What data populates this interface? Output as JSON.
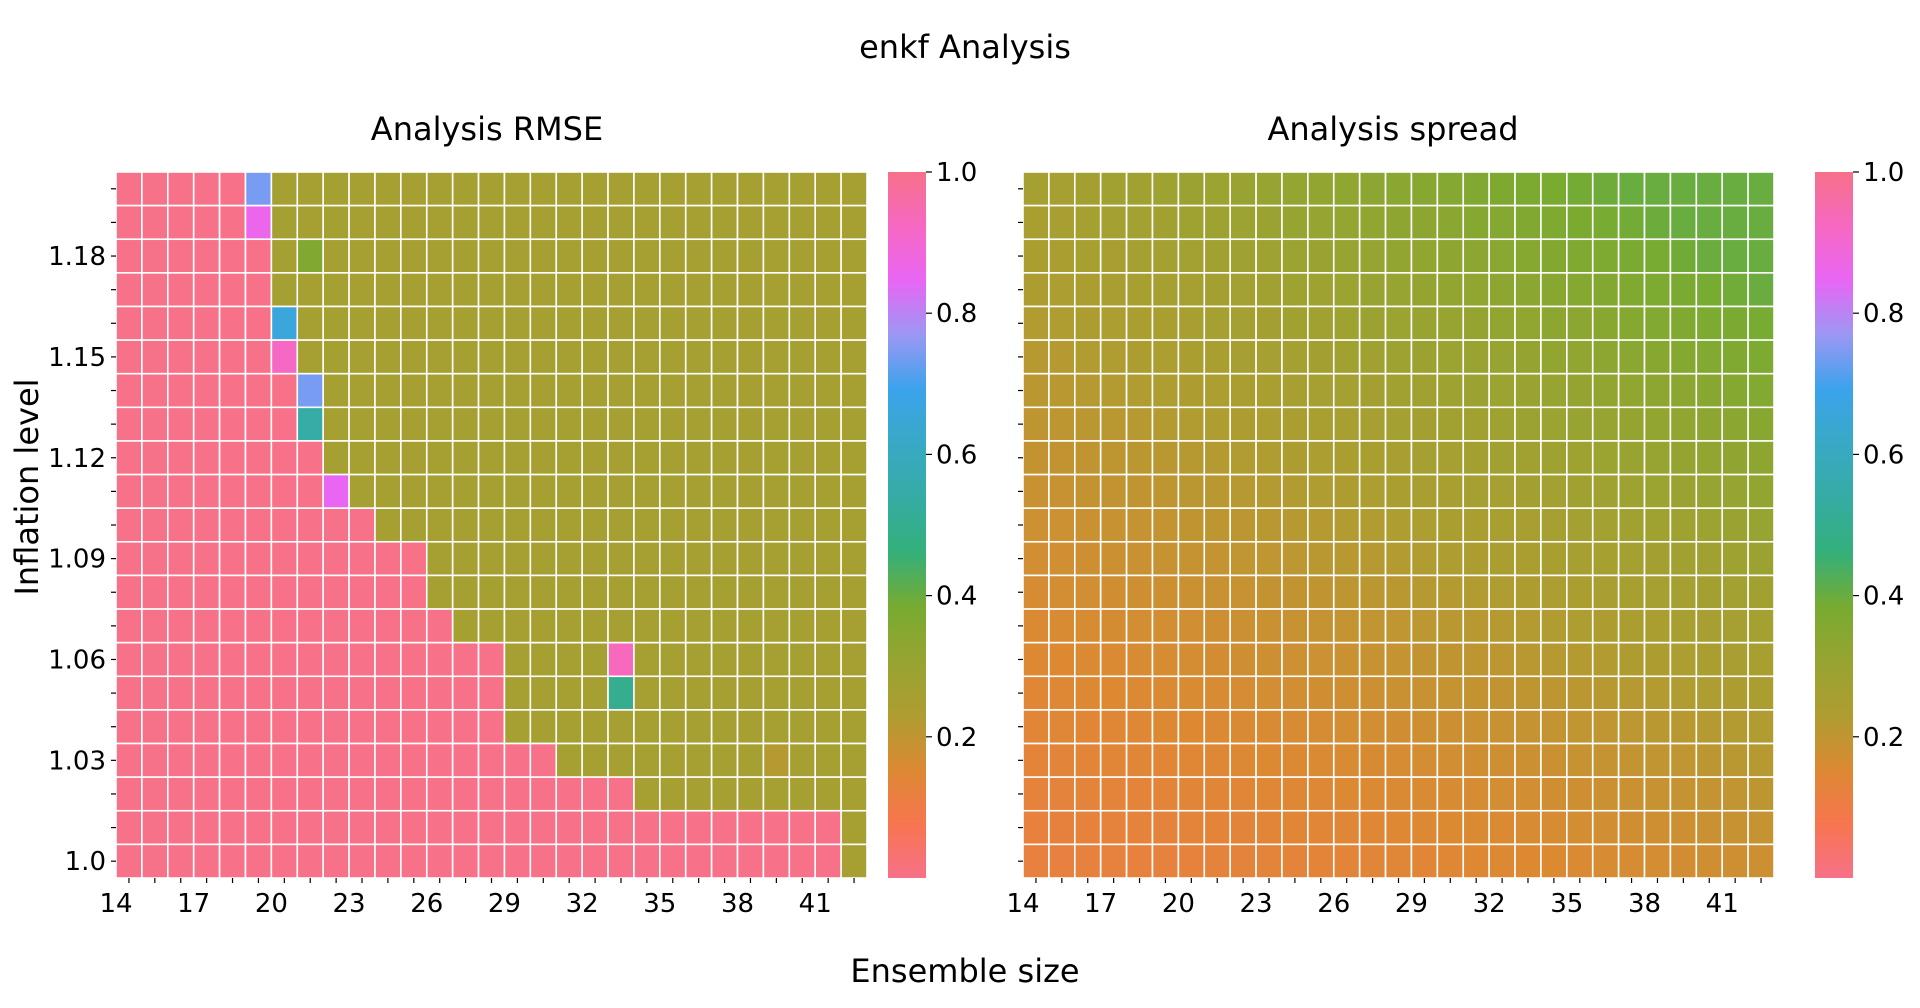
{
  "figure": {
    "suptitle": "enkf Analysis",
    "xlabel": "Ensemble size",
    "ylabel": "Inflation level"
  },
  "colormap": [
    "#f77189",
    "#f7754f",
    "#dc8932",
    "#ae9d31",
    "#97a431",
    "#77ab31",
    "#33b07a",
    "#35aca4",
    "#38a9c5",
    "#3ba3ec",
    "#9b97f4",
    "#e866f4",
    "#f668c2",
    "#f77189"
  ],
  "chart_data": [
    {
      "type": "heatmap",
      "title": "Analysis RMSE",
      "x": [
        14,
        15,
        16,
        17,
        18,
        19,
        20,
        21,
        22,
        23,
        24,
        25,
        26,
        27,
        28,
        29,
        30,
        31,
        32,
        33,
        34,
        35,
        36,
        37,
        38,
        39,
        40,
        41,
        42
      ],
      "y": [
        1.2,
        1.19,
        1.18,
        1.17,
        1.16,
        1.15,
        1.14,
        1.13,
        1.12,
        1.11,
        1.1,
        1.09,
        1.08,
        1.07,
        1.06,
        1.05,
        1.04,
        1.03,
        1.02,
        1.01,
        1.0
      ],
      "xticks": [
        "14",
        "17",
        "20",
        "23",
        "26",
        "29",
        "32",
        "35",
        "38",
        "41"
      ],
      "yticks": [
        "1.18",
        "1.15",
        "1.12",
        "1.09",
        "1.06",
        "1.03",
        "1.0"
      ],
      "colorbar": {
        "range": [
          0,
          1
        ],
        "ticks": [
          "0.2",
          "0.4",
          "0.6",
          "0.8",
          "1.0"
        ]
      },
      "grid": true,
      "z_default": 0.26,
      "boundary_min_x": [
        20,
        20,
        20,
        20,
        21,
        21,
        22,
        22,
        22,
        23,
        24,
        26,
        26,
        27,
        29,
        29,
        29,
        31,
        34,
        42,
        42
      ],
      "overrides": [
        {
          "x": 19,
          "y": 1.2,
          "v": 0.74
        },
        {
          "x": 19,
          "y": 1.19,
          "v": 0.86
        },
        {
          "x": 21,
          "y": 1.18,
          "v": 0.36
        },
        {
          "x": 20,
          "y": 1.16,
          "v": 0.66
        },
        {
          "x": 20,
          "y": 1.15,
          "v": 0.92
        },
        {
          "x": 21,
          "y": 1.14,
          "v": 0.74
        },
        {
          "x": 21,
          "y": 1.13,
          "v": 0.54
        },
        {
          "x": 22,
          "y": 1.11,
          "v": 0.85
        },
        {
          "x": 33,
          "y": 1.06,
          "v": 0.93
        },
        {
          "x": 33,
          "y": 1.05,
          "v": 0.5
        },
        {
          "x": 39,
          "y": 1.03,
          "v": 0.22
        }
      ]
    },
    {
      "type": "heatmap",
      "title": "Analysis spread",
      "x": [
        14,
        15,
        16,
        17,
        18,
        19,
        20,
        21,
        22,
        23,
        24,
        25,
        26,
        27,
        28,
        29,
        30,
        31,
        32,
        33,
        34,
        35,
        36,
        37,
        38,
        39,
        40,
        41,
        42
      ],
      "y": [
        1.2,
        1.19,
        1.18,
        1.17,
        1.16,
        1.15,
        1.14,
        1.13,
        1.12,
        1.11,
        1.1,
        1.09,
        1.08,
        1.07,
        1.06,
        1.05,
        1.04,
        1.03,
        1.02,
        1.01,
        1.0
      ],
      "xticks": [
        "14",
        "17",
        "20",
        "23",
        "26",
        "29",
        "32",
        "35",
        "38",
        "41"
      ],
      "yticks": [],
      "colorbar": {
        "range": [
          0,
          1
        ],
        "ticks": [
          "0.2",
          "0.4",
          "0.6",
          "0.8",
          "1.0"
        ]
      },
      "grid": true,
      "value_range": {
        "min_value": 0.12,
        "max_value": 0.4
      }
    }
  ]
}
